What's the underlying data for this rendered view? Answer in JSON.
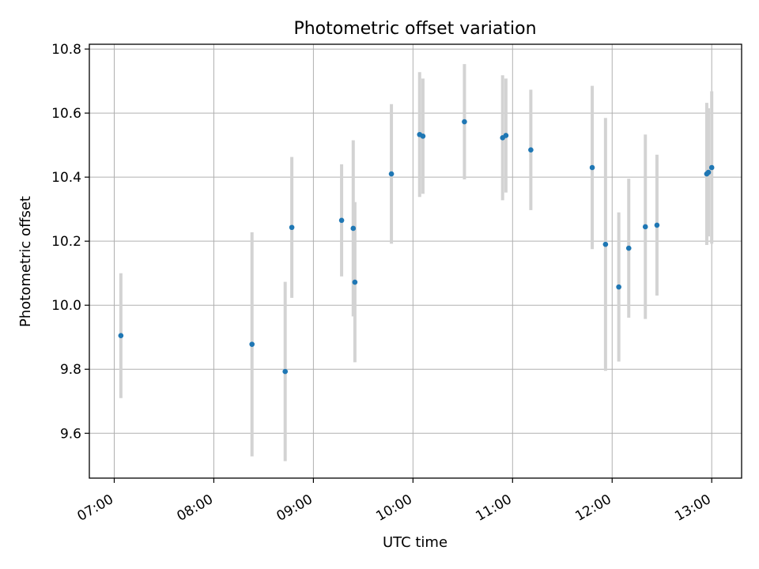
{
  "chart_data": {
    "type": "scatter",
    "title": "Photometric offset variation",
    "xlabel": "UTC time",
    "ylabel": "Photometric offset",
    "xlim": [
      "06:45",
      "13:18"
    ],
    "ylim": [
      9.46,
      10.815
    ],
    "x_ticks": [
      "07:00",
      "08:00",
      "09:00",
      "10:00",
      "11:00",
      "12:00",
      "13:00"
    ],
    "y_ticks": [
      "9.6",
      "9.8",
      "10.0",
      "10.2",
      "10.4",
      "10.6",
      "10.8"
    ],
    "grid": true,
    "marker_color": "#1f77b4",
    "errorbar_color": "#d3d3d3",
    "points": [
      {
        "time": "07:04",
        "y": 9.905,
        "err": 0.195
      },
      {
        "time": "08:23",
        "y": 9.878,
        "err": 0.35
      },
      {
        "time": "08:43",
        "y": 9.793,
        "err": 0.28
      },
      {
        "time": "08:47",
        "y": 10.243,
        "err": 0.22
      },
      {
        "time": "09:17",
        "y": 10.265,
        "err": 0.175
      },
      {
        "time": "09:24",
        "y": 10.24,
        "err": 0.275
      },
      {
        "time": "09:25",
        "y": 10.072,
        "err": 0.25
      },
      {
        "time": "09:47",
        "y": 10.41,
        "err": 0.218
      },
      {
        "time": "10:04",
        "y": 10.533,
        "err": 0.195
      },
      {
        "time": "10:06",
        "y": 10.528,
        "err": 0.18
      },
      {
        "time": "10:31",
        "y": 10.573,
        "err": 0.18
      },
      {
        "time": "10:54",
        "y": 10.523,
        "err": 0.195
      },
      {
        "time": "10:56",
        "y": 10.53,
        "err": 0.178
      },
      {
        "time": "11:11",
        "y": 10.485,
        "err": 0.188
      },
      {
        "time": "11:48",
        "y": 10.43,
        "err": 0.255
      },
      {
        "time": "11:56",
        "y": 10.19,
        "err": 0.395
      },
      {
        "time": "12:04",
        "y": 10.057,
        "err": 0.233
      },
      {
        "time": "12:10",
        "y": 10.178,
        "err": 0.217
      },
      {
        "time": "12:20",
        "y": 10.245,
        "err": 0.288
      },
      {
        "time": "12:27",
        "y": 10.25,
        "err": 0.22
      },
      {
        "time": "12:57",
        "y": 10.41,
        "err": 0.222
      },
      {
        "time": "12:58",
        "y": 10.415,
        "err": 0.2
      },
      {
        "time": "13:00",
        "y": 10.43,
        "err": 0.238
      }
    ]
  }
}
